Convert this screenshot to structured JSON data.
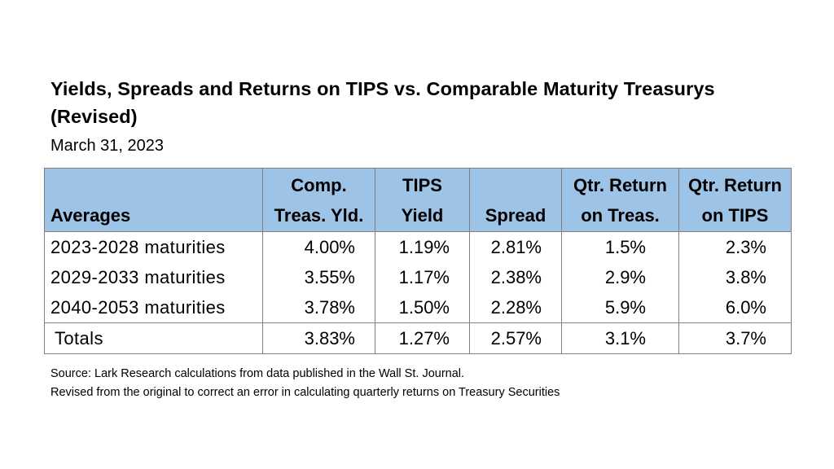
{
  "title": "Yields, Spreads and Returns on TIPS vs. Comparable Maturity Treasurys (Revised)",
  "subtitle": "March 31, 2023",
  "table": {
    "headers": [
      {
        "line1": "",
        "line2": "Averages"
      },
      {
        "line1": "Comp.",
        "line2": "Treas. Yld."
      },
      {
        "line1": "TIPS",
        "line2": "Yield"
      },
      {
        "line1": "",
        "line2": "Spread"
      },
      {
        "line1": "Qtr. Return",
        "line2": "on Treas."
      },
      {
        "line1": "Qtr. Return",
        "line2": "on TIPS"
      }
    ],
    "rows": [
      {
        "label": "2023-2028 maturities",
        "comp_treas_yld": "4.00%",
        "tips_yield": "1.19%",
        "spread": "2.81%",
        "qtr_return_treas": "1.5%",
        "qtr_return_tips": "2.3%"
      },
      {
        "label": "2029-2033 maturities",
        "comp_treas_yld": "3.55%",
        "tips_yield": "1.17%",
        "spread": "2.38%",
        "qtr_return_treas": "2.9%",
        "qtr_return_tips": "3.8%"
      },
      {
        "label": "2040-2053 maturities",
        "comp_treas_yld": "3.78%",
        "tips_yield": "1.50%",
        "spread": "2.28%",
        "qtr_return_treas": "5.9%",
        "qtr_return_tips": "6.0%"
      }
    ],
    "totals": {
      "label": "Totals",
      "comp_treas_yld": "3.83%",
      "tips_yield": "1.27%",
      "spread": "2.57%",
      "qtr_return_treas": "3.1%",
      "qtr_return_tips": "3.7%"
    }
  },
  "source_note": "Source:  Lark Research calculations from data published in the Wall St. Journal.",
  "revision_note": "Revised from the original to correct an error in calculating quarterly returns on Treasury Securities",
  "colors": {
    "header_fill": "#9dc3e6",
    "border": "#7f7f7f"
  }
}
